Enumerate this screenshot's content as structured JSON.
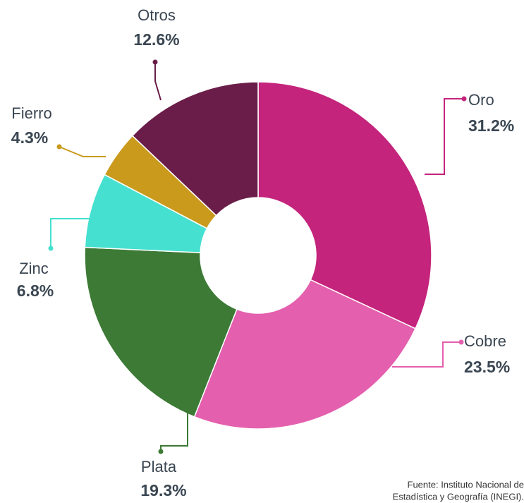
{
  "chart_data": {
    "type": "donut",
    "categories": [
      "Oro",
      "Cobre",
      "Plata",
      "Zinc",
      "Fierro",
      "Otros"
    ],
    "values": [
      31.2,
      23.5,
      19.3,
      6.8,
      4.3,
      12.6
    ],
    "value_labels": [
      "31.2%",
      "23.5%",
      "19.3%",
      "6.8%",
      "4.3%",
      "12.6%"
    ],
    "colors": [
      "#c4247c",
      "#e45fae",
      "#3c7a35",
      "#45e0cf",
      "#c99a1c",
      "#6a1d48"
    ],
    "source": [
      "Fuente: Instituto Nacional de",
      "Estadística y Geografía (INEGI)."
    ]
  }
}
